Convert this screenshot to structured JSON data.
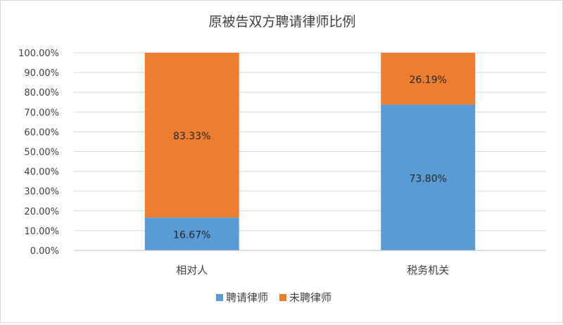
{
  "chart_data": {
    "type": "bar",
    "stacked": true,
    "percent": true,
    "title": "原被告双方聘请律师比例",
    "categories": [
      "相对人",
      "税务机关"
    ],
    "series": [
      {
        "name": "聘请律师",
        "values": [
          16.67,
          73.8
        ],
        "labels": [
          "16.67%",
          "73.80%"
        ],
        "color": "#5B9BD5"
      },
      {
        "name": "未聘律师",
        "values": [
          83.33,
          26.19
        ],
        "labels": [
          "83.33%",
          "26.19%"
        ],
        "color": "#ED7D31"
      }
    ],
    "ylim": [
      0,
      100
    ],
    "yticks": [
      "0.00%",
      "10.00%",
      "20.00%",
      "30.00%",
      "40.00%",
      "50.00%",
      "60.00%",
      "70.00%",
      "80.00%",
      "90.00%",
      "100.00%"
    ],
    "grid": true,
    "legend_position": "bottom"
  }
}
